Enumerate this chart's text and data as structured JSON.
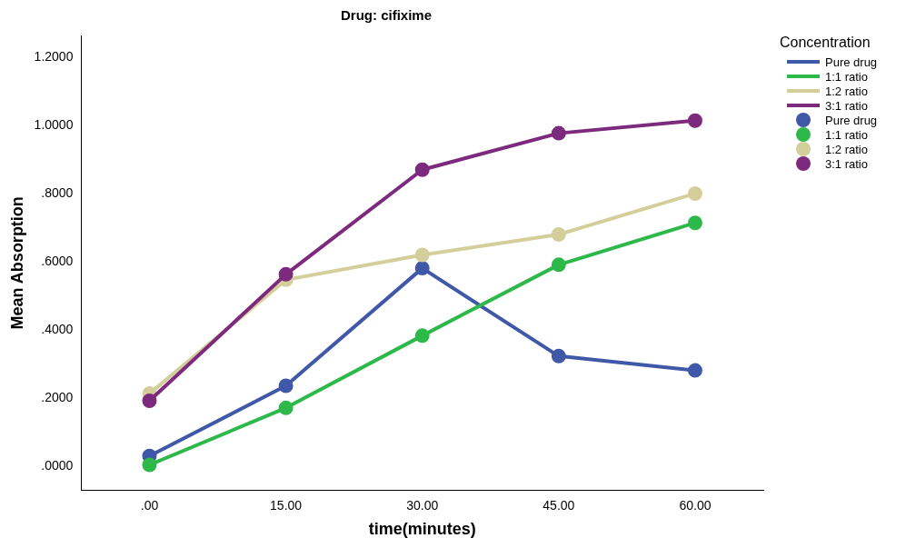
{
  "chart_data": {
    "type": "line",
    "title": "Drug: cifixime",
    "xlabel": "time(minutes)",
    "ylabel": "Mean Absorption",
    "legend_title": "Concentration",
    "categories": [
      ".00",
      "15.00",
      "30.00",
      "45.00",
      "60.00"
    ],
    "series": [
      {
        "name": "Pure drug",
        "color": "#3f58a8",
        "values": [
          0.031,
          0.237,
          0.582,
          0.324,
          0.282
        ]
      },
      {
        "name": "1:1 ratio",
        "color": "#2db84a",
        "values": [
          0.005,
          0.172,
          0.384,
          0.592,
          0.715
        ]
      },
      {
        "name": "1:2 ratio",
        "color": "#d4cf9a",
        "values": [
          0.214,
          0.548,
          0.621,
          0.681,
          0.801
        ]
      },
      {
        "name": "3:1 ratio",
        "color": "#7d2a7e",
        "values": [
          0.193,
          0.564,
          0.871,
          0.978,
          1.015
        ]
      }
    ],
    "ylim": [
      -0.07,
      1.265
    ],
    "yticks": [
      {
        "value": 0,
        "label": ".0000"
      },
      {
        "value": 0.2,
        "label": ".2000"
      },
      {
        "value": 0.4,
        "label": ".4000"
      },
      {
        "value": 0.6,
        "label": ".6000"
      },
      {
        "value": 0.8,
        "label": ".8000"
      },
      {
        "value": 1.0,
        "label": "1.0000"
      },
      {
        "value": 1.2,
        "label": "1.2000"
      }
    ],
    "marker": "circle",
    "legend": "top right"
  }
}
